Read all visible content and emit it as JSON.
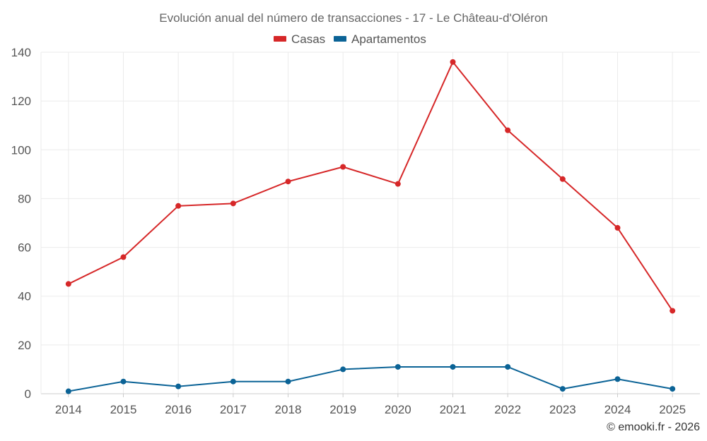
{
  "chart_data": {
    "type": "line",
    "title": "Evolución anual del número de transacciones - 17 - Le Château-d'Oléron",
    "x": [
      "2014",
      "2015",
      "2016",
      "2017",
      "2018",
      "2019",
      "2020",
      "2021",
      "2022",
      "2023",
      "2024",
      "2025"
    ],
    "series": [
      {
        "name": "Casas",
        "color": "#d62728",
        "values": [
          45,
          56,
          77,
          78,
          87,
          93,
          86,
          136,
          108,
          88,
          68,
          34
        ]
      },
      {
        "name": "Apartamentos",
        "color": "#0b6396",
        "values": [
          1,
          5,
          3,
          5,
          5,
          10,
          11,
          11,
          11,
          2,
          6,
          2
        ]
      }
    ],
    "ylim": [
      0,
      140
    ],
    "yticks": [
      0,
      20,
      40,
      60,
      80,
      100,
      120,
      140
    ],
    "xlabel": "",
    "ylabel": "",
    "grid": true,
    "legend": "top-center"
  },
  "credit": "© emooki.fr - 2026"
}
